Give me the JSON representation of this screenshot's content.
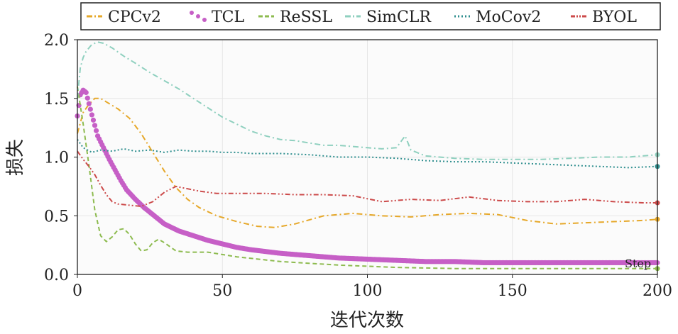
{
  "chart_data": {
    "type": "line",
    "title": "",
    "xlabel": "迭代次数",
    "ylabel": "损失",
    "xlim": [
      0,
      200
    ],
    "ylim": [
      0.0,
      2.0
    ],
    "xticks": [
      0,
      50,
      100,
      150,
      200
    ],
    "xtick_labels": [
      "0",
      "50",
      "100",
      "150",
      "200"
    ],
    "yticks": [
      0.0,
      0.5,
      1.0,
      1.5,
      2.0
    ],
    "ytick_labels": [
      "0.0",
      "0.5",
      "1.0",
      "1.5",
      "2.0"
    ],
    "grid": true,
    "legend_position": "top",
    "annotation": "Step",
    "series": [
      {
        "name": "CPCv2",
        "color": "#e6a82a",
        "style": "dash-dot",
        "x": [
          0,
          2,
          4,
          6,
          8,
          10,
          14,
          18,
          22,
          26,
          30,
          34,
          38,
          42,
          48,
          55,
          62,
          68,
          75,
          85,
          95,
          105,
          115,
          125,
          135,
          145,
          155,
          165,
          175,
          185,
          195,
          200
        ],
        "y": [
          1.2,
          1.38,
          1.45,
          1.5,
          1.5,
          1.47,
          1.41,
          1.33,
          1.2,
          1.04,
          0.88,
          0.74,
          0.64,
          0.57,
          0.5,
          0.45,
          0.41,
          0.4,
          0.43,
          0.5,
          0.52,
          0.5,
          0.49,
          0.51,
          0.52,
          0.51,
          0.46,
          0.43,
          0.44,
          0.45,
          0.46,
          0.47
        ]
      },
      {
        "name": "TCL",
        "color": "#c65fc6",
        "style": "dots",
        "x": [
          0,
          1,
          2,
          3,
          5,
          7,
          9,
          11,
          13,
          15,
          17,
          20,
          23,
          26,
          30,
          35,
          40,
          45,
          50,
          55,
          60,
          70,
          80,
          90,
          100,
          110,
          120,
          130,
          140,
          150,
          160,
          170,
          180,
          190,
          200
        ],
        "y": [
          1.35,
          1.53,
          1.57,
          1.55,
          1.36,
          1.18,
          1.08,
          0.98,
          0.89,
          0.8,
          0.72,
          0.64,
          0.57,
          0.51,
          0.43,
          0.37,
          0.33,
          0.29,
          0.26,
          0.23,
          0.21,
          0.18,
          0.16,
          0.14,
          0.13,
          0.12,
          0.11,
          0.11,
          0.1,
          0.1,
          0.1,
          0.1,
          0.1,
          0.1,
          0.1
        ]
      },
      {
        "name": "ReSSL",
        "color": "#8dbb4f",
        "style": "dashed",
        "x": [
          0,
          2,
          4,
          6,
          8,
          10,
          12,
          14,
          16,
          18,
          20,
          22,
          24,
          26,
          28,
          30,
          34,
          38,
          45,
          55,
          70,
          90,
          110,
          130,
          150,
          170,
          190,
          200
        ],
        "y": [
          1.6,
          1.28,
          0.93,
          0.55,
          0.33,
          0.28,
          0.32,
          0.38,
          0.39,
          0.34,
          0.26,
          0.2,
          0.21,
          0.27,
          0.3,
          0.27,
          0.2,
          0.19,
          0.19,
          0.15,
          0.11,
          0.08,
          0.06,
          0.05,
          0.05,
          0.05,
          0.05,
          0.05
        ]
      },
      {
        "name": "SimCLR",
        "color": "#8fd0bf",
        "style": "dash-dot",
        "x": [
          0,
          1,
          2,
          3,
          5,
          7,
          9,
          12,
          16,
          20,
          25,
          30,
          35,
          40,
          45,
          50,
          55,
          60,
          65,
          70,
          75,
          80,
          85,
          90,
          95,
          100,
          105,
          110,
          113,
          115,
          120,
          130,
          140,
          150,
          160,
          170,
          180,
          190,
          200
        ],
        "y": [
          1.5,
          1.76,
          1.85,
          1.9,
          1.96,
          1.98,
          1.97,
          1.93,
          1.86,
          1.8,
          1.72,
          1.65,
          1.58,
          1.5,
          1.42,
          1.34,
          1.28,
          1.22,
          1.18,
          1.15,
          1.14,
          1.12,
          1.1,
          1.1,
          1.09,
          1.08,
          1.07,
          1.08,
          1.18,
          1.06,
          1.01,
          0.99,
          0.98,
          0.98,
          0.98,
          0.99,
          1.0,
          1.0,
          1.02
        ]
      },
      {
        "name": "MoCov2",
        "color": "#2f8f8f",
        "style": "dotted",
        "x": [
          0,
          2,
          5,
          8,
          12,
          16,
          20,
          25,
          30,
          35,
          40,
          45,
          50,
          55,
          60,
          70,
          80,
          90,
          100,
          110,
          120,
          130,
          140,
          150,
          160,
          170,
          180,
          190,
          200
        ],
        "y": [
          1.15,
          1.08,
          1.04,
          1.06,
          1.05,
          1.07,
          1.05,
          1.06,
          1.04,
          1.06,
          1.05,
          1.05,
          1.04,
          1.04,
          1.03,
          1.03,
          1.02,
          1.0,
          1.0,
          0.99,
          0.97,
          0.96,
          0.96,
          0.95,
          0.94,
          0.93,
          0.92,
          0.91,
          0.92
        ]
      },
      {
        "name": "BYOL",
        "color": "#cc4a4a",
        "style": "dash-dot-dot",
        "x": [
          0,
          2,
          4,
          6,
          8,
          10,
          12,
          14,
          18,
          22,
          26,
          30,
          34,
          38,
          42,
          48,
          55,
          65,
          75,
          85,
          95,
          105,
          115,
          125,
          135,
          145,
          155,
          165,
          175,
          185,
          195,
          200
        ],
        "y": [
          1.05,
          0.98,
          0.92,
          0.85,
          0.76,
          0.68,
          0.62,
          0.6,
          0.59,
          0.58,
          0.62,
          0.7,
          0.75,
          0.73,
          0.71,
          0.69,
          0.69,
          0.69,
          0.68,
          0.68,
          0.67,
          0.62,
          0.64,
          0.63,
          0.66,
          0.63,
          0.62,
          0.62,
          0.64,
          0.62,
          0.61,
          0.61
        ]
      }
    ]
  }
}
